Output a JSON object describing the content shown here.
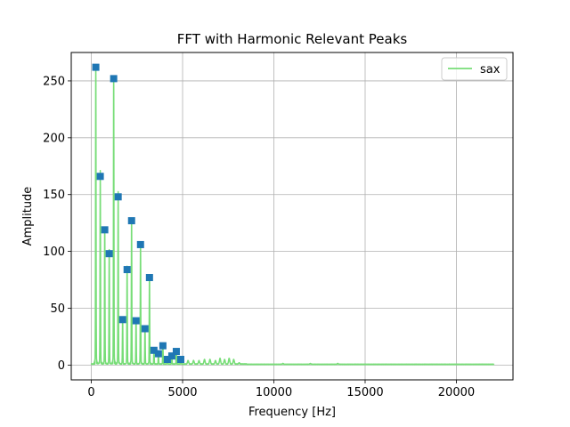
{
  "chart_data": {
    "type": "line",
    "title": "FFT with Harmonic Relevant Peaks",
    "xlabel": "Frequency [Hz]",
    "ylabel": "Amplitude",
    "xlim": [
      -1100,
      23100
    ],
    "ylim": [
      -13,
      275
    ],
    "xticks": [
      0,
      5000,
      10000,
      15000,
      20000
    ],
    "yticks": [
      0,
      50,
      100,
      150,
      200,
      250
    ],
    "grid": true,
    "legend_position": "top-right",
    "series": [
      {
        "name": "sax",
        "type": "line",
        "color": "#77dd77",
        "fundamental_hz": 245,
        "x_max_hz": 22050,
        "harmonic_amplitudes": [
          262,
          166,
          119,
          98,
          252,
          148,
          40,
          84,
          127,
          39,
          106,
          32,
          77,
          13,
          10,
          17,
          5,
          8,
          12,
          5
        ],
        "noise_floor_bumps": [
          {
            "x": 5300,
            "y": 3
          },
          {
            "x": 5600,
            "y": 3
          },
          {
            "x": 5900,
            "y": 3
          },
          {
            "x": 6200,
            "y": 4
          },
          {
            "x": 6500,
            "y": 4
          },
          {
            "x": 6800,
            "y": 3
          },
          {
            "x": 7050,
            "y": 5
          },
          {
            "x": 7300,
            "y": 4
          },
          {
            "x": 7550,
            "y": 5
          },
          {
            "x": 7800,
            "y": 4
          },
          {
            "x": 8100,
            "y": 1
          },
          {
            "x": 10500,
            "y": 1
          },
          {
            "x": 12000,
            "y": 1
          },
          {
            "x": 13500,
            "y": 1
          }
        ]
      },
      {
        "name": "",
        "type": "scatter",
        "marker": "square",
        "color": "#1f77b4",
        "points": [
          {
            "x": 245,
            "y": 262
          },
          {
            "x": 490,
            "y": 166
          },
          {
            "x": 735,
            "y": 119
          },
          {
            "x": 980,
            "y": 98
          },
          {
            "x": 1225,
            "y": 252
          },
          {
            "x": 1470,
            "y": 148
          },
          {
            "x": 1715,
            "y": 40
          },
          {
            "x": 1960,
            "y": 84
          },
          {
            "x": 2205,
            "y": 127
          },
          {
            "x": 2450,
            "y": 39
          },
          {
            "x": 2695,
            "y": 106
          },
          {
            "x": 2940,
            "y": 32
          },
          {
            "x": 3185,
            "y": 77
          },
          {
            "x": 3430,
            "y": 13
          },
          {
            "x": 3675,
            "y": 10
          },
          {
            "x": 3920,
            "y": 17
          },
          {
            "x": 4165,
            "y": 5
          },
          {
            "x": 4410,
            "y": 8
          },
          {
            "x": 4655,
            "y": 12
          },
          {
            "x": 4900,
            "y": 5
          }
        ]
      }
    ]
  }
}
